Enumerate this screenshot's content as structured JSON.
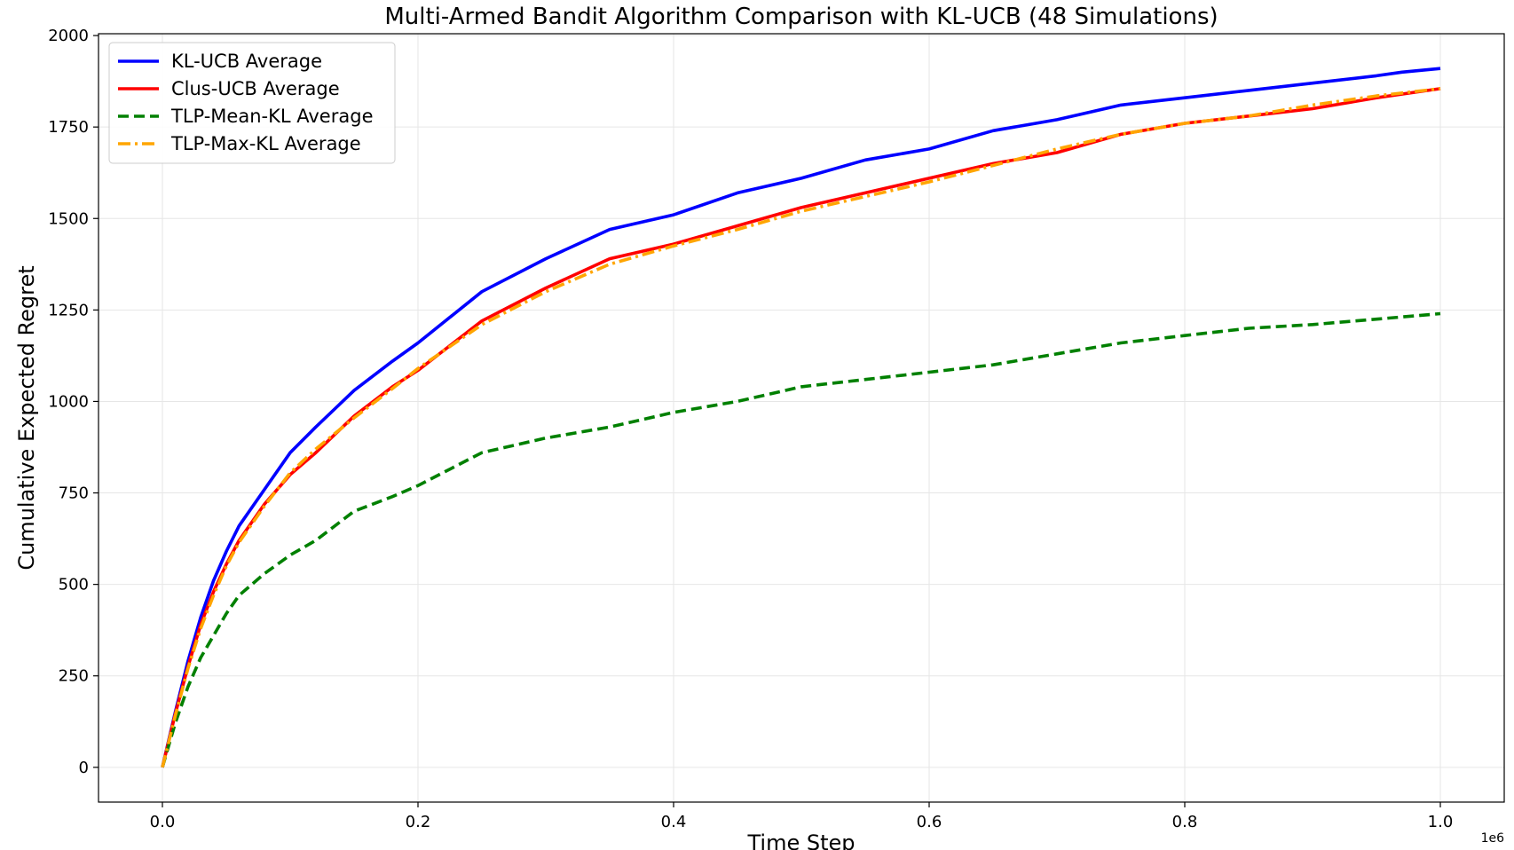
{
  "chart_data": {
    "type": "line",
    "title": "Multi-Armed Bandit Algorithm Comparison with KL-UCB (48 Simulations)",
    "xlabel": "Time Step",
    "ylabel": "Cumulative Expected Regret",
    "x_offset_label": "1e6",
    "xlim": [
      -50000,
      1050000
    ],
    "ylim": [
      -95,
      2005
    ],
    "x_ticks": [
      0,
      200000,
      400000,
      600000,
      800000,
      1000000
    ],
    "x_tick_labels": [
      "0.0",
      "0.2",
      "0.4",
      "0.6",
      "0.8",
      "1.0"
    ],
    "y_ticks": [
      0,
      250,
      500,
      750,
      1000,
      1250,
      1500,
      1750,
      2000
    ],
    "y_tick_labels": [
      "0",
      "250",
      "500",
      "750",
      "1000",
      "1250",
      "1500",
      "1750",
      "2000"
    ],
    "grid": true,
    "legend_position": "top-left",
    "series": [
      {
        "name": "KL-UCB Average",
        "color": "#0000ff",
        "style": "solid",
        "x": [
          0,
          10000,
          20000,
          30000,
          40000,
          50000,
          60000,
          80000,
          100000,
          120000,
          150000,
          180000,
          200000,
          250000,
          300000,
          350000,
          400000,
          450000,
          500000,
          550000,
          600000,
          650000,
          700000,
          750000,
          800000,
          850000,
          900000,
          950000,
          970000,
          1000000
        ],
        "values": [
          0,
          150,
          290,
          410,
          510,
          590,
          660,
          760,
          860,
          930,
          1030,
          1110,
          1160,
          1300,
          1390,
          1470,
          1510,
          1570,
          1610,
          1660,
          1690,
          1740,
          1770,
          1810,
          1830,
          1850,
          1870,
          1890,
          1900,
          1910
        ]
      },
      {
        "name": "Clus-UCB Average",
        "color": "#ff0000",
        "style": "solid",
        "x": [
          0,
          10000,
          20000,
          30000,
          40000,
          50000,
          60000,
          80000,
          100000,
          120000,
          150000,
          180000,
          200000,
          250000,
          300000,
          350000,
          400000,
          450000,
          500000,
          550000,
          600000,
          650000,
          700000,
          750000,
          800000,
          850000,
          900000,
          950000,
          1000000
        ],
        "values": [
          0,
          145,
          275,
          390,
          480,
          555,
          620,
          720,
          800,
          860,
          960,
          1040,
          1085,
          1220,
          1310,
          1390,
          1430,
          1480,
          1530,
          1570,
          1610,
          1650,
          1680,
          1730,
          1760,
          1780,
          1800,
          1830,
          1855
        ]
      },
      {
        "name": "TLP-Mean-KL Average",
        "color": "#008000",
        "style": "dashed",
        "x": [
          0,
          10000,
          20000,
          30000,
          40000,
          50000,
          60000,
          80000,
          100000,
          120000,
          150000,
          180000,
          200000,
          250000,
          300000,
          350000,
          400000,
          450000,
          500000,
          550000,
          600000,
          650000,
          700000,
          750000,
          800000,
          850000,
          900000,
          950000,
          1000000
        ],
        "values": [
          0,
          120,
          220,
          300,
          360,
          420,
          470,
          530,
          580,
          620,
          700,
          740,
          770,
          860,
          900,
          930,
          970,
          1000,
          1040,
          1060,
          1080,
          1100,
          1130,
          1160,
          1180,
          1200,
          1210,
          1225,
          1240
        ]
      },
      {
        "name": "TLP-Max-KL Average",
        "color": "#ffa500",
        "style": "dashdot",
        "x": [
          0,
          10000,
          20000,
          30000,
          40000,
          50000,
          60000,
          80000,
          100000,
          120000,
          150000,
          180000,
          200000,
          250000,
          300000,
          350000,
          400000,
          450000,
          500000,
          550000,
          600000,
          650000,
          700000,
          750000,
          800000,
          850000,
          900000,
          950000,
          1000000
        ],
        "values": [
          0,
          140,
          270,
          380,
          470,
          550,
          615,
          715,
          805,
          870,
          955,
          1035,
          1090,
          1210,
          1300,
          1375,
          1425,
          1470,
          1520,
          1560,
          1600,
          1645,
          1690,
          1730,
          1760,
          1780,
          1810,
          1835,
          1855
        ]
      }
    ]
  }
}
